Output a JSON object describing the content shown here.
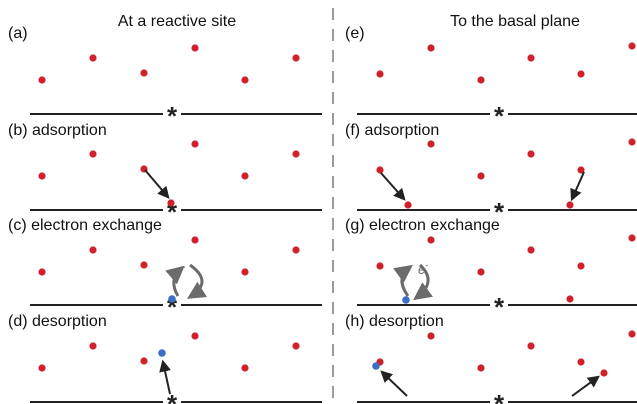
{
  "headers": {
    "left": "At a reactive site",
    "right": "To the basal plane"
  },
  "panels": {
    "a": "(a)",
    "b": "(b) adsorption",
    "c": "(c) electron exchange",
    "d": "(d) desorption",
    "e": "(e)",
    "f": "(f) adsorption",
    "g": "(g) electron exchange",
    "h": "(h) desorption"
  },
  "electron_label": "e",
  "electron_charge": "-",
  "site_marker": "*",
  "colors": {
    "reactant": "#d0202a",
    "product": "#3a6fc4",
    "surface": "#222222",
    "arrow": "#222222",
    "electron_arrow": "#6b6b6b",
    "divider": "#9a9a9a"
  }
}
